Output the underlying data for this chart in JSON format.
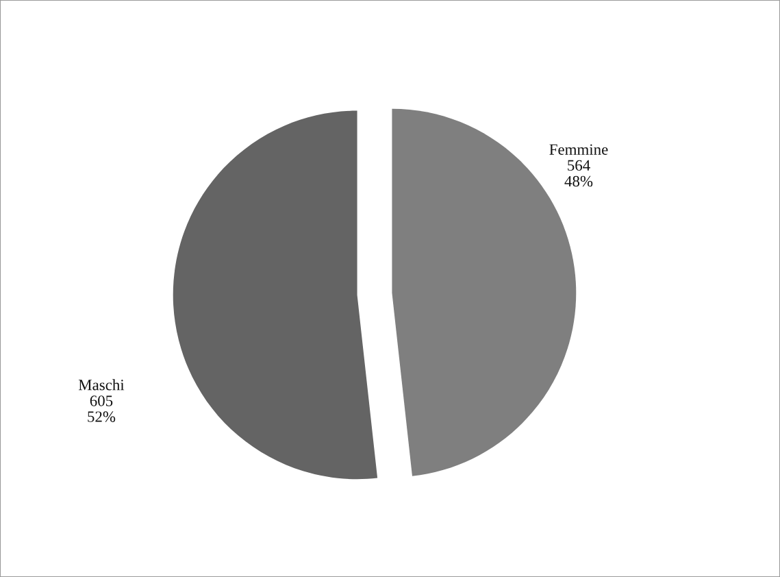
{
  "chart_data": {
    "type": "pie",
    "categories": [
      "Femmine",
      "Maschi"
    ],
    "values": [
      564,
      605
    ],
    "value_labels": [
      "564\n48%",
      "605\n52%"
    ],
    "colors": [
      "#7f7f7f",
      "#646464"
    ],
    "legend": false
  }
}
